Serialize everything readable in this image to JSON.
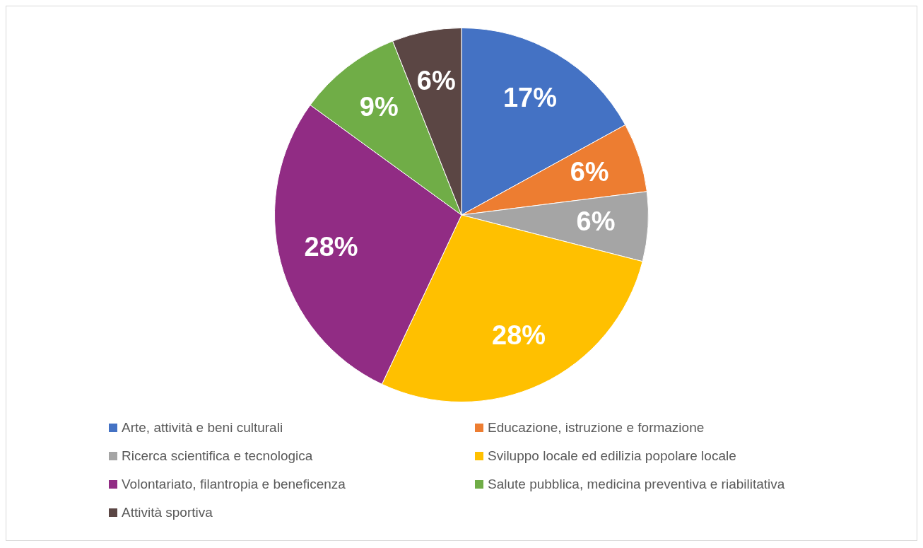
{
  "chart_data": {
    "type": "pie",
    "categories": [
      "Arte, attività e beni culturali",
      "Educazione, istruzione e formazione",
      "Ricerca scientifica e tecnologica",
      "Sviluppo locale ed edilizia popolare locale",
      "Volontariato, filantropia e beneficenza",
      "Salute pubblica, medicina preventiva e riabilitativa",
      "Attività sportiva"
    ],
    "values": [
      17,
      6,
      6,
      28,
      28,
      9,
      6
    ],
    "colors": [
      "#4472c4",
      "#ed7d31",
      "#a5a5a5",
      "#ffc000",
      "#912c84",
      "#70ad47",
      "#5b4644"
    ],
    "value_labels": [
      "17%",
      "6%",
      "6%",
      "28%",
      "28%",
      "9%",
      "6%"
    ],
    "legend": "bottom"
  }
}
